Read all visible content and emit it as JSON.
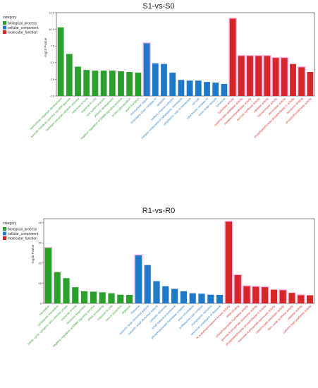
{
  "palette": {
    "biological_process": "#2ca02c",
    "cellular_component": "#1f78c8",
    "molecular_function": "#d62728",
    "highlight": "#ff9ee0"
  },
  "chart_data": [
    {
      "type": "bar",
      "title": "S1-vs-S0",
      "ylabel": "-log10 Pvalue",
      "ylim": [
        0,
        12.5
      ],
      "yticks": [
        "0.0",
        "2.5",
        "5.0",
        "7.5",
        "10.0",
        "12.5"
      ],
      "legend": {
        "title": "category",
        "position": "top-left",
        "items": [
          "biological_process",
          "cellular_component",
          "molecular_function"
        ]
      },
      "bars": [
        {
          "label": "multicellular organism development",
          "value": 10.3,
          "category": "biological_process",
          "highlight": false
        },
        {
          "label": "sucrose metabolic process via UDP-glucose",
          "value": 6.3,
          "category": "biological_process",
          "highlight": false
        },
        {
          "label": "hydrogen peroxide catabolic process",
          "value": 4.4,
          "category": "biological_process",
          "highlight": false
        },
        {
          "label": "response to heat",
          "value": 3.9,
          "category": "biological_process",
          "highlight": false
        },
        {
          "label": "response to cold",
          "value": 3.8,
          "category": "biological_process",
          "highlight": false
        },
        {
          "label": "root system process",
          "value": 3.8,
          "category": "biological_process",
          "highlight": false
        },
        {
          "label": "phloem development",
          "value": 3.8,
          "category": "biological_process",
          "highlight": false
        },
        {
          "label": "negative regulation of ERBB signaling process",
          "value": 3.7,
          "category": "biological_process",
          "highlight": false
        },
        {
          "label": "protein glycosylation",
          "value": 3.6,
          "category": "biological_process",
          "highlight": false
        },
        {
          "label": "auxin transport",
          "value": 3.5,
          "category": "biological_process",
          "highlight": false
        },
        {
          "label": "extracellular region",
          "value": 7.9,
          "category": "cellular_component",
          "highlight": true
        },
        {
          "label": "respiratory chain complex IV",
          "value": 4.9,
          "category": "cellular_component",
          "highlight": false
        },
        {
          "label": "apoplast",
          "value": 4.8,
          "category": "cellular_component",
          "highlight": false
        },
        {
          "label": "sodium channel complex",
          "value": 3.5,
          "category": "cellular_component",
          "highlight": false
        },
        {
          "label": "integral component of cytoplasmic membrane",
          "value": 2.4,
          "category": "cellular_component",
          "highlight": false
        },
        {
          "label": "cytoplasmic side of membrane",
          "value": 2.3,
          "category": "cellular_component",
          "highlight": false
        },
        {
          "label": "cell wall",
          "value": 2.3,
          "category": "cellular_component",
          "highlight": false
        },
        {
          "label": "cytochrome complex IV",
          "value": 2.1,
          "category": "cellular_component",
          "highlight": false
        },
        {
          "label": "trans-Golgi network",
          "value": 2.0,
          "category": "cellular_component",
          "highlight": false
        },
        {
          "label": "lysosome",
          "value": 1.8,
          "category": "cellular_component",
          "highlight": false
        },
        {
          "label": "hydrolase activity",
          "value": 11.6,
          "category": "molecular_function",
          "highlight": true
        },
        {
          "label": "cysteine-type peptidase activity",
          "value": 6.0,
          "category": "molecular_function",
          "highlight": true
        },
        {
          "label": "metalloendopeptidase activity",
          "value": 6.0,
          "category": "molecular_function",
          "highlight": true
        },
        {
          "label": "sucrose synthase activity",
          "value": 6.0,
          "category": "molecular_function",
          "highlight": true
        },
        {
          "label": "catalase activity",
          "value": 6.0,
          "category": "molecular_function",
          "highlight": true
        },
        {
          "label": "transaminase activity",
          "value": 5.7,
          "category": "molecular_function",
          "highlight": true
        },
        {
          "label": "peroxidase activity",
          "value": 5.7,
          "category": "molecular_function",
          "highlight": true
        },
        {
          "label": "phosphatidylinositol phospholipase C activity",
          "value": 4.8,
          "category": "molecular_function",
          "highlight": false
        },
        {
          "label": "serotonin binding",
          "value": 4.3,
          "category": "molecular_function",
          "highlight": true
        },
        {
          "label": "phosphofructokinase activity",
          "value": 3.6,
          "category": "molecular_function",
          "highlight": false
        }
      ]
    },
    {
      "type": "bar",
      "title": "R1-vs-R0",
      "ylabel": "-log10 Pvalue",
      "ylim": [
        0,
        42
      ],
      "yticks": [
        "0",
        "10",
        "20",
        "30",
        "40"
      ],
      "legend": {
        "title": "category",
        "position": "top-left",
        "items": [
          "biological_process",
          "cellular_component",
          "molecular_function"
        ]
      },
      "bars": [
        {
          "label": "translation",
          "value": 27.5,
          "category": "biological_process",
          "highlight": true
        },
        {
          "label": "cytoplasmic translation",
          "value": 15.5,
          "category": "biological_process",
          "highlight": false
        },
        {
          "label": "mitotic cycle, cytogenic and collection phase",
          "value": 12.5,
          "category": "biological_process",
          "highlight": false
        },
        {
          "label": "response to heat",
          "value": 8.0,
          "category": "biological_process",
          "highlight": false
        },
        {
          "label": "ribosome biogenesis",
          "value": 6.0,
          "category": "biological_process",
          "highlight": false
        },
        {
          "label": "negative regulation of ERBB signaling process",
          "value": 5.8,
          "category": "biological_process",
          "highlight": false
        },
        {
          "label": "rRNA processing",
          "value": 5.5,
          "category": "biological_process",
          "highlight": false
        },
        {
          "label": "response to cold",
          "value": 5.0,
          "category": "biological_process",
          "highlight": false
        },
        {
          "label": "neuron projection",
          "value": 4.3,
          "category": "biological_process",
          "highlight": false
        },
        {
          "label": "digestion",
          "value": 4.2,
          "category": "biological_process",
          "highlight": false
        },
        {
          "label": "ribosome",
          "value": 23.8,
          "category": "cellular_component",
          "highlight": true
        },
        {
          "label": "cytosolic large ribosomal subunit",
          "value": 19.0,
          "category": "cellular_component",
          "highlight": false
        },
        {
          "label": "cytosolic small ribosomal subunit",
          "value": 11.0,
          "category": "cellular_component",
          "highlight": false
        },
        {
          "label": "cytosolic ribosome",
          "value": 8.5,
          "category": "cellular_component",
          "highlight": false
        },
        {
          "label": "small-subunit processome",
          "value": 7.2,
          "category": "cellular_component",
          "highlight": false
        },
        {
          "label": "phosphopyruvate hydratase complex",
          "value": 6.0,
          "category": "cellular_component",
          "highlight": false
        },
        {
          "label": "axon microtubule",
          "value": 5.0,
          "category": "cellular_component",
          "highlight": false
        },
        {
          "label": "proteasome core complex",
          "value": 4.8,
          "category": "cellular_component",
          "highlight": false
        },
        {
          "label": "endoplasmic reticulum",
          "value": 4.3,
          "category": "cellular_component",
          "highlight": false
        },
        {
          "label": "structural constituent of ribosome",
          "value": 4.2,
          "category": "cellular_component",
          "highlight": false
        },
        {
          "label": "N-acetylmannosamine kinase activity",
          "value": 40.5,
          "category": "molecular_function",
          "highlight": true
        },
        {
          "label": "rRNA binding",
          "value": 14.0,
          "category": "molecular_function",
          "highlight": true
        },
        {
          "label": "phosphopyruvate hydratase activity",
          "value": 8.5,
          "category": "molecular_function",
          "highlight": true
        },
        {
          "label": "glucose-6-phosphate isomerase activity",
          "value": 8.2,
          "category": "molecular_function",
          "highlight": true
        },
        {
          "label": "phosphatidylinositol phospholipase C activity",
          "value": 8.0,
          "category": "molecular_function",
          "highlight": true
        },
        {
          "label": "mannose-6-phosphate isomerase activity",
          "value": 6.8,
          "category": "molecular_function",
          "highlight": false
        },
        {
          "label": "cysteine-type peptidase activity",
          "value": 6.5,
          "category": "molecular_function",
          "highlight": true
        },
        {
          "label": "nitric oxide synthase activity",
          "value": 5.2,
          "category": "molecular_function",
          "highlight": false
        },
        {
          "label": "catalase activity",
          "value": 4.0,
          "category": "molecular_function",
          "highlight": true
        },
        {
          "label": "cysteine-type peptidase activity",
          "value": 4.0,
          "category": "molecular_function",
          "highlight": false
        }
      ]
    }
  ]
}
